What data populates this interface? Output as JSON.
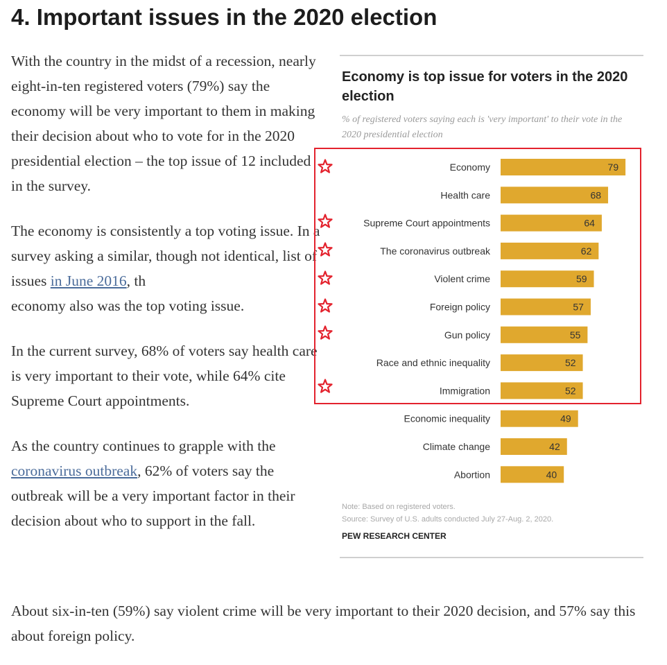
{
  "heading": "4. Important issues in the 2020 election",
  "article": {
    "p1": "With the country in the midst of a recession, nearly eight-in-ten registered voters (79%) say the economy will be very important to them in making their decision about who to vote for in the 2020 presidential election – the top issue of 12 included in the survey.",
    "p2_before": "The economy is consistently a top voting issue. In a survey asking a similar, though not identical, list of issues ",
    "p2_link": "in June 2016",
    "p2_mid": ", th",
    "p2_after": "economy also was the top voting issue.",
    "p3": "In the current survey, 68% of voters say health care is very important to their vote, while 64% cite Supreme Court appointments.",
    "p4_before": "As the country continues to grapple with the ",
    "p4_link": "coronavirus outbreak",
    "p4_after": ", 62% of voters say the outbreak will be a very important factor in their decision about who to support in the fall.",
    "p5": "About six-in-ten (59%) say violent crime will be very important to their 2020 decision, and 57% say this about foreign policy."
  },
  "chart_data": {
    "type": "bar",
    "orientation": "horizontal",
    "title": "Economy is top issue for voters in the 2020 election",
    "subtitle": "% of registered voters saying each is 'very important' to their vote in the 2020 presidential election",
    "categories": [
      "Economy",
      "Health care",
      "Supreme Court appointments",
      "The coronavirus outbreak",
      "Violent crime",
      "Foreign policy",
      "Gun policy",
      "Race and ethnic inequality",
      "Immigration",
      "Economic inequality",
      "Climate change",
      "Abortion"
    ],
    "values": [
      79,
      68,
      64,
      62,
      59,
      57,
      55,
      52,
      52,
      49,
      42,
      40
    ],
    "xlim": [
      0,
      100
    ],
    "bar_color": "#e0a82e",
    "starred": [
      true,
      false,
      true,
      true,
      true,
      true,
      true,
      false,
      true,
      false,
      false,
      false
    ],
    "note": "Note: Based on registered voters.",
    "source": "Source: Survey of U.S. adults conducted July 27-Aug. 2, 2020.",
    "org": "PEW RESEARCH CENTER"
  },
  "annotation": {
    "color": "#e3222d"
  }
}
